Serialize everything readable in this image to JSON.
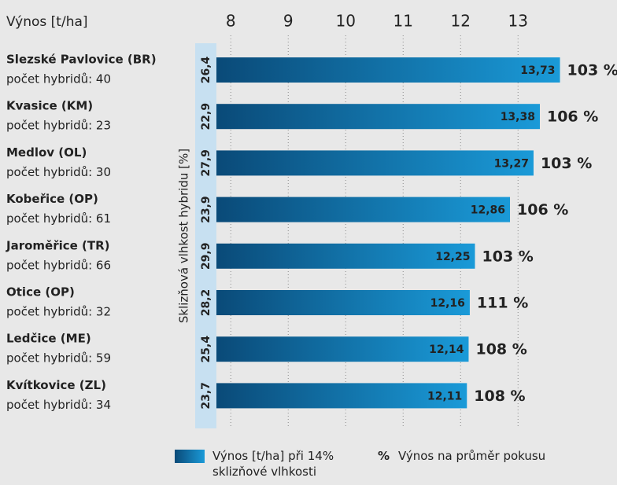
{
  "chart_data": {
    "type": "bar",
    "orientation": "horizontal",
    "y_label": "Výnos [t/ha]",
    "categories": [
      "Slezské Pavlovice (BR)",
      "Kvasice (KM)",
      "Medlov (OL)",
      "Kobeřice (OP)",
      "Jaroměřice (TR)",
      "Otice (OP)",
      "Ledčice (ME)",
      "Kvítkovice (ZL)"
    ],
    "category_notes": [
      "počet hybridů: 40",
      "počet hybridů: 23",
      "počet hybridů: 30",
      "počet hybridů: 61",
      "počet hybridů: 66",
      "počet hybridů: 32",
      "počet hybridů: 59",
      "počet hybridů: 34"
    ],
    "series": [
      {
        "name": "Výnos [t/ha] při 14% sklizňové vlhkosti",
        "color": [
          "#0a4a78",
          "#1a9ad8"
        ],
        "values": [
          13.73,
          13.38,
          13.27,
          12.86,
          12.25,
          12.16,
          12.14,
          12.11
        ],
        "value_labels": [
          "13,73",
          "13,38",
          "13,27",
          "12,86",
          "12,25",
          "12,16",
          "12,14",
          "12,11"
        ]
      },
      {
        "name": "Výnos na průměr pokusu",
        "symbol": "%",
        "color": "#222222",
        "values": [
          103,
          106,
          103,
          106,
          103,
          111,
          108,
          108
        ],
        "value_labels": [
          "103 %",
          "106 %",
          "103 %",
          "106 %",
          "103 %",
          "111 %",
          "108 %",
          "108 %"
        ]
      }
    ],
    "moisture": {
      "label": "Sklizňová vlhkost hybridu [%]",
      "color": "#c7e0f1",
      "values": [
        26.4,
        22.9,
        27.9,
        23.9,
        29.9,
        28.2,
        25.4,
        23.7
      ],
      "value_labels": [
        "26,4",
        "22,9",
        "27,9",
        "23,9",
        "29,9",
        "28,2",
        "25,4",
        "23,7"
      ]
    },
    "xlim": [
      7.75,
      14.5
    ],
    "xticks": [
      8,
      9,
      10,
      11,
      12,
      13
    ],
    "grid": true
  }
}
